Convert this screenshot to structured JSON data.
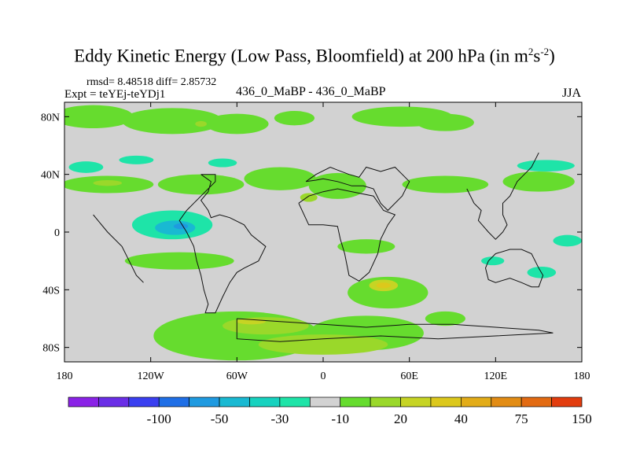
{
  "chart_data": {
    "type": "heatmap",
    "title_main": "Eddy Kinetic Energy (Low Pass, Bloomfield) at 200 hPa (in m",
    "title_sup1": "2",
    "title_mid": "s",
    "title_sup2": "-2",
    "title_end": ")",
    "rmsd_label": "rmsd= 8.48518 diff= 2.85732",
    "expt_label": "Expt = teYEj-teYDj1",
    "case_label": "436_0_MaBP - 436_0_MaBP",
    "season": "JJA",
    "xlim": [
      -180,
      180
    ],
    "ylim": [
      -90,
      90
    ],
    "x_ticks": [
      {
        "value": -180,
        "label": "180"
      },
      {
        "value": -120,
        "label": "120W"
      },
      {
        "value": -60,
        "label": "60W"
      },
      {
        "value": 0,
        "label": "0"
      },
      {
        "value": 60,
        "label": "60E"
      },
      {
        "value": 120,
        "label": "120E"
      },
      {
        "value": 180,
        "label": "180"
      }
    ],
    "y_ticks": [
      {
        "value": 80,
        "label": "80N"
      },
      {
        "value": 40,
        "label": "40N"
      },
      {
        "value": 0,
        "label": "0"
      },
      {
        "value": -40,
        "label": "40S"
      },
      {
        "value": -80,
        "label": "80S"
      }
    ],
    "background_color": "#d2d2d2",
    "colorbar": {
      "colors": [
        "#8a22e6",
        "#6a2ee6",
        "#3a3ff0",
        "#1f6fe6",
        "#1f9ae0",
        "#19b9d2",
        "#17d2bf",
        "#1ee4a8",
        "#d2d2d2",
        "#66dc2e",
        "#9ad82a",
        "#c6d424",
        "#dcc81c",
        "#e2ac18",
        "#e28c14",
        "#e26a12",
        "#e23c0e"
      ],
      "labels": [
        {
          "after_index": 2,
          "text": "-100"
        },
        {
          "after_index": 4,
          "text": "-50"
        },
        {
          "after_index": 6,
          "text": "-30"
        },
        {
          "after_index": 8,
          "text": "-10"
        },
        {
          "after_index": 10,
          "text": "20"
        },
        {
          "after_index": 12,
          "text": "40"
        },
        {
          "after_index": 14,
          "text": "75"
        },
        {
          "after_index": 16,
          "text": "150"
        }
      ]
    },
    "regions": [
      {
        "name": "arctic-band-1",
        "color": "#66dc2e",
        "lon": -160,
        "lat": 80,
        "rlon": 28,
        "rlat": 8
      },
      {
        "name": "arctic-band-2",
        "color": "#66dc2e",
        "lon": -105,
        "lat": 77,
        "rlon": 35,
        "rlat": 9
      },
      {
        "name": "arctic-band-3",
        "color": "#66dc2e",
        "lon": -60,
        "lat": 75,
        "rlon": 22,
        "rlat": 7
      },
      {
        "name": "arctic-band-4",
        "color": "#66dc2e",
        "lon": -20,
        "lat": 79,
        "rlon": 14,
        "rlat": 5
      },
      {
        "name": "arctic-band-5",
        "color": "#66dc2e",
        "lon": 55,
        "lat": 80,
        "rlon": 35,
        "rlat": 7
      },
      {
        "name": "arctic-band-6",
        "color": "#66dc2e",
        "lon": 85,
        "lat": 76,
        "rlon": 20,
        "rlat": 6
      },
      {
        "name": "arctic-core",
        "color": "#9ad82a",
        "lon": -85,
        "lat": 75,
        "rlon": 4,
        "rlat": 2
      },
      {
        "name": "nh-midlat-1",
        "color": "#66dc2e",
        "lon": -150,
        "lat": 33,
        "rlon": 32,
        "rlat": 6
      },
      {
        "name": "nh-midlat-2",
        "color": "#66dc2e",
        "lon": -85,
        "lat": 33,
        "rlon": 30,
        "rlat": 7
      },
      {
        "name": "nh-midlat-3",
        "color": "#66dc2e",
        "lon": -30,
        "lat": 37,
        "rlon": 25,
        "rlat": 8
      },
      {
        "name": "nh-midlat-4",
        "color": "#66dc2e",
        "lon": 10,
        "lat": 32,
        "rlon": 20,
        "rlat": 9
      },
      {
        "name": "nh-midlat-5",
        "color": "#66dc2e",
        "lon": 85,
        "lat": 33,
        "rlon": 30,
        "rlat": 6
      },
      {
        "name": "nh-midlat-6",
        "color": "#66dc2e",
        "lon": 150,
        "lat": 35,
        "rlon": 25,
        "rlat": 7
      },
      {
        "name": "nh-core-1",
        "color": "#9ad82a",
        "lon": -150,
        "lat": 34,
        "rlon": 10,
        "rlat": 2
      },
      {
        "name": "nh-core-2",
        "color": "#9ad82a",
        "lon": -10,
        "lat": 24,
        "rlon": 6,
        "rlat": 3
      },
      {
        "name": "nh-neg-1",
        "color": "#1ee4a8",
        "lon": -165,
        "lat": 45,
        "rlon": 12,
        "rlat": 4
      },
      {
        "name": "nh-neg-2",
        "color": "#1ee4a8",
        "lon": -130,
        "lat": 50,
        "rlon": 12,
        "rlat": 3
      },
      {
        "name": "nh-neg-3",
        "color": "#1ee4a8",
        "lon": -70,
        "lat": 48,
        "rlon": 10,
        "rlat": 3
      },
      {
        "name": "nh-neg-4",
        "color": "#1ee4a8",
        "lon": 155,
        "lat": 46,
        "rlon": 20,
        "rlat": 4
      },
      {
        "name": "eq-neg-1",
        "color": "#1ee4a8",
        "lon": -105,
        "lat": 5,
        "rlon": 28,
        "rlat": 10
      },
      {
        "name": "eq-neg-2",
        "color": "#19b9d2",
        "lon": -103,
        "lat": 3,
        "rlon": 14,
        "rlat": 5
      },
      {
        "name": "eq-neg-3",
        "color": "#1f9ae0",
        "lon": -99,
        "lat": 4,
        "rlon": 5,
        "rlat": 2
      },
      {
        "name": "eq-pos-1",
        "color": "#66dc2e",
        "lon": -100,
        "lat": -20,
        "rlon": 38,
        "rlat": 6
      },
      {
        "name": "eq-pos-2",
        "color": "#66dc2e",
        "lon": 30,
        "lat": -10,
        "rlon": 20,
        "rlat": 5
      },
      {
        "name": "eq-neg-4",
        "color": "#1ee4a8",
        "lon": 170,
        "lat": -6,
        "rlon": 10,
        "rlat": 4
      },
      {
        "name": "sh-neg-1",
        "color": "#1ee4a8",
        "lon": 152,
        "lat": -28,
        "rlon": 10,
        "rlat": 4
      },
      {
        "name": "sh-neg-2",
        "color": "#1ee4a8",
        "lon": 118,
        "lat": -20,
        "rlon": 8,
        "rlat": 3
      },
      {
        "name": "sh-pos-1",
        "color": "#66dc2e",
        "lon": 45,
        "lat": -42,
        "rlon": 28,
        "rlat": 11
      },
      {
        "name": "sh-pos-2",
        "color": "#66dc2e",
        "lon": -60,
        "lat": -72,
        "rlon": 58,
        "rlat": 17
      },
      {
        "name": "sh-pos-3",
        "color": "#66dc2e",
        "lon": 30,
        "lat": -70,
        "rlon": 40,
        "rlat": 12
      },
      {
        "name": "sh-pos-4",
        "color": "#9ad82a",
        "lon": -40,
        "lat": -65,
        "rlon": 30,
        "rlat": 6
      },
      {
        "name": "sh-pos-5",
        "color": "#9ad82a",
        "lon": 0,
        "lat": -78,
        "rlon": 45,
        "rlat": 7
      },
      {
        "name": "sh-core-1",
        "color": "#c6d424",
        "lon": 42,
        "lat": -37,
        "rlon": 10,
        "rlat": 4
      },
      {
        "name": "sh-core-2",
        "color": "#dcc81c",
        "lon": 42,
        "lat": -37,
        "rlon": 5,
        "rlat": 2
      },
      {
        "name": "sh-core-3",
        "color": "#c6d424",
        "lon": -50,
        "lat": -62,
        "rlon": 10,
        "rlat": 2
      },
      {
        "name": "sh-pos-6",
        "color": "#66dc2e",
        "lon": 85,
        "lat": -60,
        "rlon": 14,
        "rlat": 5
      }
    ],
    "coastlines": [
      [
        [
          -85,
          40
        ],
        [
          -75,
          40
        ],
        [
          -75,
          35
        ],
        [
          -80,
          30
        ],
        [
          -85,
          25
        ],
        [
          -90,
          20
        ],
        [
          -95,
          15
        ],
        [
          -100,
          8
        ],
        [
          -95,
          0
        ],
        [
          -90,
          -10
        ],
        [
          -88,
          -20
        ],
        [
          -85,
          -30
        ],
        [
          -83,
          -40
        ],
        [
          -80,
          -50
        ],
        [
          -82,
          -56
        ],
        [
          -75,
          -56
        ],
        [
          -70,
          -45
        ],
        [
          -65,
          -35
        ],
        [
          -60,
          -28
        ],
        [
          -55,
          -25
        ],
        [
          -45,
          -20
        ],
        [
          -40,
          -10
        ],
        [
          -50,
          -2
        ],
        [
          -55,
          5
        ],
        [
          -65,
          10
        ],
        [
          -72,
          12
        ],
        [
          -78,
          10
        ],
        [
          -80,
          15
        ],
        [
          -85,
          22
        ],
        [
          -80,
          28
        ],
        [
          -78,
          35
        ],
        [
          -85,
          40
        ]
      ],
      [
        [
          -12,
          35
        ],
        [
          -5,
          40
        ],
        [
          5,
          45
        ],
        [
          10,
          43
        ],
        [
          18,
          40
        ],
        [
          25,
          38
        ],
        [
          30,
          45
        ],
        [
          40,
          42
        ],
        [
          50,
          45
        ],
        [
          60,
          35
        ],
        [
          55,
          25
        ],
        [
          45,
          15
        ],
        [
          40,
          20
        ],
        [
          35,
          30
        ],
        [
          28,
          32
        ],
        [
          20,
          32
        ],
        [
          10,
          35
        ],
        [
          0,
          37
        ],
        [
          -5,
          36
        ],
        [
          -12,
          35
        ]
      ],
      [
        [
          -17,
          20
        ],
        [
          -10,
          5
        ],
        [
          0,
          5
        ],
        [
          10,
          4
        ],
        [
          12,
          -5
        ],
        [
          15,
          -15
        ],
        [
          18,
          -30
        ],
        [
          25,
          -34
        ],
        [
          32,
          -28
        ],
        [
          38,
          -15
        ],
        [
          40,
          -5
        ],
        [
          45,
          5
        ],
        [
          50,
          12
        ],
        [
          42,
          15
        ],
        [
          35,
          25
        ],
        [
          20,
          28
        ],
        [
          10,
          30
        ],
        [
          0,
          28
        ],
        [
          -10,
          25
        ],
        [
          -17,
          20
        ]
      ],
      [
        [
          -160,
          12
        ],
        [
          -150,
          0
        ],
        [
          -140,
          -10
        ],
        [
          -135,
          -20
        ],
        [
          -130,
          -30
        ],
        [
          -125,
          -35
        ]
      ],
      [
        [
          100,
          30
        ],
        [
          105,
          20
        ],
        [
          110,
          15
        ],
        [
          108,
          8
        ],
        [
          115,
          0
        ],
        [
          120,
          -5
        ],
        [
          125,
          0
        ],
        [
          128,
          5
        ],
        [
          125,
          12
        ],
        [
          125,
          20
        ],
        [
          130,
          25
        ],
        [
          135,
          35
        ],
        [
          140,
          40
        ],
        [
          145,
          45
        ],
        [
          150,
          55
        ]
      ],
      [
        [
          115,
          -20
        ],
        [
          120,
          -15
        ],
        [
          130,
          -12
        ],
        [
          138,
          -12
        ],
        [
          145,
          -15
        ],
        [
          150,
          -25
        ],
        [
          153,
          -30
        ],
        [
          150,
          -38
        ],
        [
          145,
          -38
        ],
        [
          138,
          -35
        ],
        [
          130,
          -32
        ],
        [
          120,
          -35
        ],
        [
          115,
          -33
        ],
        [
          113,
          -25
        ],
        [
          115,
          -20
        ]
      ],
      [
        [
          -60,
          -60
        ],
        [
          -30,
          -62
        ],
        [
          0,
          -64
        ],
        [
          30,
          -66
        ],
        [
          60,
          -64
        ],
        [
          90,
          -64
        ],
        [
          120,
          -66
        ],
        [
          150,
          -68
        ],
        [
          160,
          -70
        ],
        [
          120,
          -72
        ],
        [
          80,
          -74
        ],
        [
          40,
          -72
        ],
        [
          0,
          -74
        ],
        [
          -30,
          -76
        ],
        [
          -60,
          -74
        ],
        [
          -60,
          -60
        ]
      ]
    ]
  }
}
